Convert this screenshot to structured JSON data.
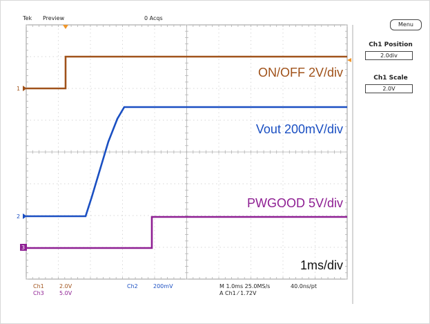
{
  "header": {
    "brand": "Tek",
    "mode": "Preview",
    "acquisitions": "0 Acqs"
  },
  "side_menu": {
    "menu_label": "Menu",
    "ch1_position_label": "Ch1 Position",
    "ch1_position_value": "2.0div",
    "ch1_scale_label": "Ch1 Scale",
    "ch1_scale_value": "2.0V"
  },
  "waveform_labels": {
    "onoff": "ON/OFF 2V/div",
    "vout": "Vout 200mV/div",
    "pwgood": "PWGOOD 5V/div",
    "timebase": "1ms/div"
  },
  "channel_markers": {
    "ch1": "1",
    "ch2": "2",
    "ch3": "3"
  },
  "status": {
    "ch1_label": "Ch1",
    "ch1_value": "2.0V",
    "ch3_label": "Ch3",
    "ch3_value": "5.0V",
    "ch2_label": "Ch2",
    "ch2_value": "200mV",
    "horizontal": "M 1.0ms 25.0MS/s",
    "resolution": "40.0ns/pt",
    "trigger": "A  Ch1  ⁄  1.72V"
  },
  "colors": {
    "ch1": "#a0521a",
    "ch2": "#1a4fc2",
    "ch3": "#8e1f93",
    "grid": "#c9c9c9",
    "trigger_marker": "#f0962a"
  }
}
